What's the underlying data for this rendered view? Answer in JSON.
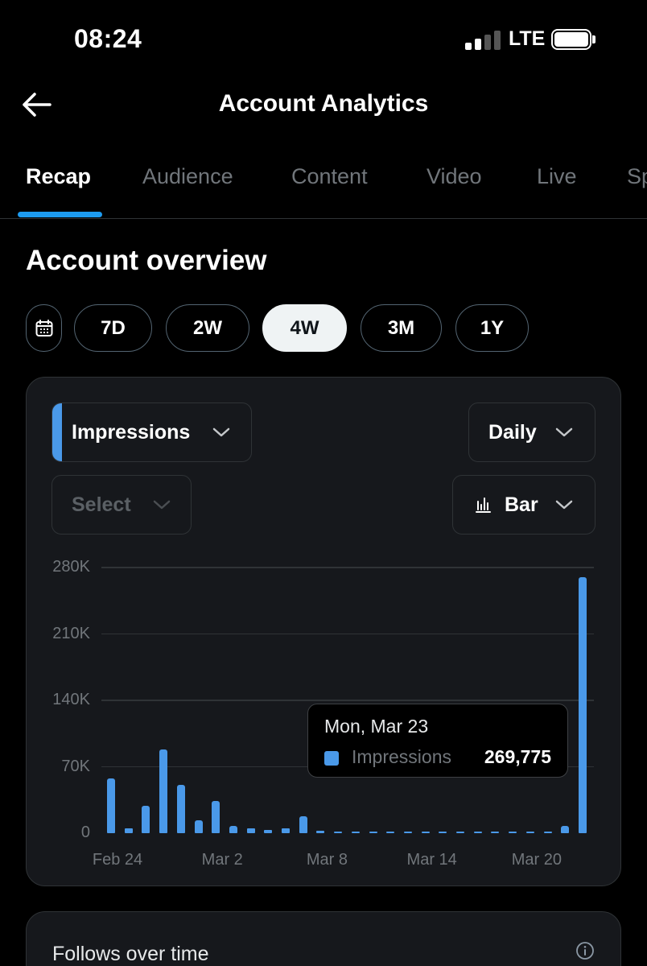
{
  "status_bar": {
    "time": "08:24",
    "network": "LTE"
  },
  "header": {
    "title": "Account Analytics"
  },
  "tabs": [
    {
      "label": "Recap",
      "active": true
    },
    {
      "label": "Audience"
    },
    {
      "label": "Content"
    },
    {
      "label": "Video"
    },
    {
      "label": "Live"
    },
    {
      "label": "Sp"
    }
  ],
  "section": {
    "title": "Account overview"
  },
  "ranges": [
    {
      "label": "7D"
    },
    {
      "label": "2W"
    },
    {
      "label": "4W",
      "selected": true
    },
    {
      "label": "3M"
    },
    {
      "label": "1Y"
    }
  ],
  "controls": {
    "metric": "Impressions",
    "compare": "Select",
    "interval": "Daily",
    "chart_type": "Bar"
  },
  "tooltip": {
    "date": "Mon, Mar 23",
    "series": "Impressions",
    "value": "269,775"
  },
  "chart_data": {
    "type": "bar",
    "series_name": "Impressions",
    "color": "#4a99e9",
    "ylim": [
      0,
      280000
    ],
    "y_ticks": [
      {
        "value": 0,
        "label": "0"
      },
      {
        "value": 70000,
        "label": "70K"
      },
      {
        "value": 140000,
        "label": "140K"
      },
      {
        "value": 210000,
        "label": "210K"
      },
      {
        "value": 280000,
        "label": "280K"
      }
    ],
    "x_tick_labels": [
      {
        "index": 0,
        "label": "Feb 24"
      },
      {
        "index": 6,
        "label": "Mar 2"
      },
      {
        "index": 12,
        "label": "Mar 8"
      },
      {
        "index": 18,
        "label": "Mar 14"
      },
      {
        "index": 24,
        "label": "Mar 20"
      }
    ],
    "categories": [
      "Feb 24",
      "Feb 25",
      "Feb 26",
      "Feb 27",
      "Feb 28",
      "Mar 1",
      "Mar 2",
      "Mar 3",
      "Mar 4",
      "Mar 5",
      "Mar 6",
      "Mar 7",
      "Mar 8",
      "Mar 9",
      "Mar 10",
      "Mar 11",
      "Mar 12",
      "Mar 13",
      "Mar 14",
      "Mar 15",
      "Mar 16",
      "Mar 17",
      "Mar 18",
      "Mar 19",
      "Mar 20",
      "Mar 21",
      "Mar 22",
      "Mar 23"
    ],
    "values": [
      58000,
      5000,
      29000,
      88000,
      51000,
      14000,
      34000,
      8000,
      5000,
      3500,
      5000,
      18000,
      2500,
      1500,
      1500,
      1500,
      1500,
      1500,
      1500,
      1500,
      1500,
      1500,
      1500,
      1500,
      1500,
      1500,
      8000,
      269775
    ],
    "grid": true
  },
  "follows_card": {
    "title": "Follows over time"
  },
  "colors": {
    "accent": "#1d9bf0",
    "bar": "#4a99e9",
    "background": "#000000",
    "card": "#16181c"
  }
}
